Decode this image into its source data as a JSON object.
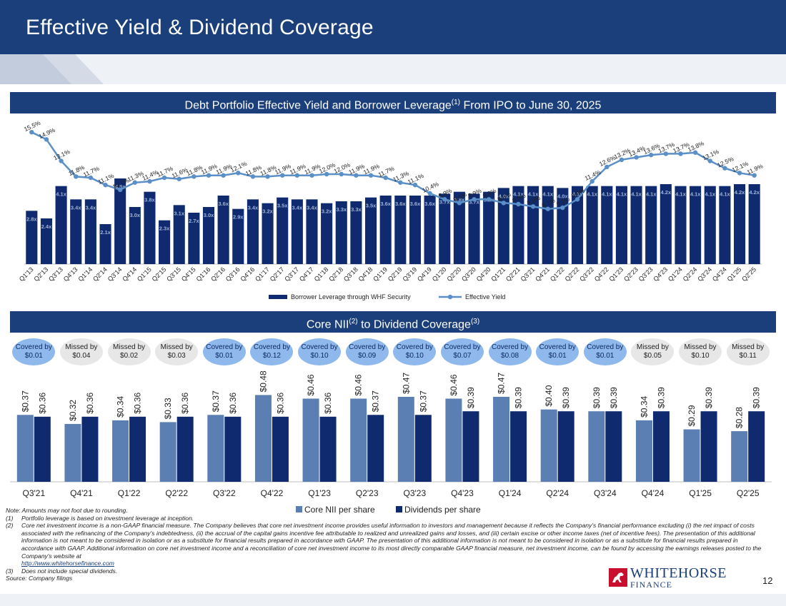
{
  "title": "Effective Yield & Dividend Coverage",
  "page_number": "12",
  "colors": {
    "navy": "#1b3f7a",
    "bar_dark": "#0f2a6e",
    "bar_light": "#5b7fb3",
    "yield_line": "#5b8fc7",
    "covered": "#8fb8ec",
    "missed": "#e7e7e7"
  },
  "banner1": {
    "main": "Debt Portfolio Effective Yield and Borrower Leverage",
    "sup": "(1)",
    "tail": " From IPO to June 30, 2025"
  },
  "banner2": {
    "main": "Core NII",
    "sup1": "(2)",
    "mid": " to Dividend Coverage",
    "sup2": "(3)"
  },
  "chart_data": [
    {
      "type": "bar+line",
      "title": "Debt Portfolio Effective Yield and Borrower Leverage(1) From IPO to June 30, 2025",
      "categories": [
        "Q1'13",
        "Q2'13",
        "Q3'13",
        "Q4'13",
        "Q1'14",
        "Q2'14",
        "Q3'14",
        "Q4'14",
        "Q1'15",
        "Q2'15",
        "Q3'15",
        "Q4'15",
        "Q1'16",
        "Q2'16",
        "Q3'16",
        "Q4'16",
        "Q1'17",
        "Q2'17",
        "Q3'17",
        "Q4'17",
        "Q1'18",
        "Q2'18",
        "Q3'18",
        "Q4'18",
        "Q1'19",
        "Q2'19",
        "Q3'19",
        "Q4'19",
        "Q1'20",
        "Q2'20",
        "Q3'20",
        "Q4'20",
        "Q1'21",
        "Q2'21",
        "Q3'21",
        "Q4'21",
        "Q1'22",
        "Q2'22",
        "Q3'22",
        "Q4'22",
        "Q1'23",
        "Q2'23",
        "Q3'23",
        "Q4'23",
        "Q1'24",
        "Q2'24",
        "Q3'24",
        "Q4'24",
        "Q1'25",
        "Q2'25"
      ],
      "series": [
        {
          "name": "Borrower Leverage through WHF Security",
          "kind": "bar",
          "values": [
            2.8,
            2.4,
            4.1,
            3.4,
            3.4,
            2.1,
            4.5,
            3.0,
            3.8,
            2.3,
            3.1,
            2.7,
            3.0,
            3.6,
            2.9,
            3.4,
            3.2,
            3.5,
            3.4,
            3.4,
            3.2,
            3.3,
            3.3,
            3.5,
            3.6,
            3.6,
            3.6,
            3.6,
            3.7,
            3.8,
            3.7,
            3.8,
            4.0,
            4.1,
            4.1,
            4.1,
            4.0,
            4.1,
            4.1,
            4.1,
            4.1,
            4.1,
            4.1,
            4.2,
            4.1,
            4.1,
            4.1,
            4.1,
            4.2,
            4.2
          ],
          "labels": [
            "2.8x",
            "2.4x",
            "4.1x",
            "3.4x",
            "3.4x",
            "2.1x",
            "4.5x",
            "3.0x",
            "3.8x",
            "2.3x",
            "3.1x",
            "2.7x",
            "3.0x",
            "3.6x",
            "2.9x",
            "3.4x",
            "3.2x",
            "3.5x",
            "3.4x",
            "3.4x",
            "3.2x",
            "3.3x",
            "3.3x",
            "3.5x",
            "3.6x",
            "3.6x",
            "3.6x",
            "3.6x",
            "3.7x",
            "3.8x",
            "3.7x",
            "3.8x",
            "4.0x",
            "4.1x",
            "4.1x",
            "4.1x",
            "4.0x",
            "4.1x",
            "4.1x",
            "4.1x",
            "4.1x",
            "4.1x",
            "4.1x",
            "4.2x",
            "4.1x",
            "4.1x",
            "4.1x",
            "4.1x",
            "4.2x",
            "4.2x"
          ]
        },
        {
          "name": "Effective Yield",
          "kind": "line",
          "values": [
            15.5,
            14.9,
            13.1,
            11.8,
            11.7,
            11.1,
            10.7,
            11.3,
            11.4,
            11.7,
            11.6,
            11.8,
            11.9,
            11.9,
            12.1,
            11.8,
            11.8,
            11.9,
            11.9,
            11.9,
            12.0,
            12.0,
            11.9,
            11.9,
            11.7,
            11.3,
            11.1,
            10.4,
            9.9,
            9.6,
            9.9,
            9.9,
            9.6,
            9.5,
            9.3,
            9.1,
            9.2,
            9.9,
            11.4,
            12.6,
            13.2,
            13.4,
            13.6,
            13.7,
            13.7,
            13.8,
            13.1,
            12.5,
            12.1,
            11.9
          ],
          "labels": [
            "15.5%",
            "14.9%",
            "13.1%",
            "11.8%",
            "11.7%",
            "11.1%",
            "10.7%",
            "11.3%",
            "11.4%",
            "11.7%",
            "11.6%",
            "11.8%",
            "11.9%",
            "11.9%",
            "12.1%",
            "11.8%",
            "11.8%",
            "11.9%",
            "11.9%",
            "11.9%",
            "12.0%",
            "12.0%",
            "11.9%",
            "11.9%",
            "11.7%",
            "11.3%",
            "11.1%",
            "10.4%",
            "9.9%",
            "9.6%",
            "9.9%",
            "9.9%",
            "9.6%",
            "9.5%",
            "9.3%",
            "9.1%",
            "9.2%",
            "9.9%",
            "11.4%",
            "12.6%",
            "13.2%",
            "13.4%",
            "13.6%",
            "13.7%",
            "13.7%",
            "13.8%",
            "13.1%",
            "12.5%",
            "12.1%",
            "11.9%"
          ]
        }
      ],
      "bar_ylim": [
        0,
        6.0
      ],
      "line_ylim": [
        4.5,
        17.0
      ],
      "legend": "bottom-center"
    },
    {
      "type": "bar",
      "title": "Core NII(2) to Dividend Coverage(3)",
      "categories": [
        "Q3'21",
        "Q4'21",
        "Q1'22",
        "Q2'22",
        "Q3'22",
        "Q4'22",
        "Q1'23",
        "Q2'23",
        "Q3'23",
        "Q4'23",
        "Q1'24",
        "Q2'24",
        "Q3'24",
        "Q4'24",
        "Q1'25",
        "Q2'25"
      ],
      "series": [
        {
          "name": "Core NII per share",
          "values": [
            0.37,
            0.32,
            0.34,
            0.33,
            0.37,
            0.48,
            0.46,
            0.46,
            0.47,
            0.46,
            0.47,
            0.4,
            0.39,
            0.34,
            0.29,
            0.28
          ],
          "labels": [
            "$0.37",
            "$0.32",
            "$0.34",
            "$0.33",
            "$0.37",
            "$0.48",
            "$0.46",
            "$0.46",
            "$0.47",
            "$0.46",
            "$0.47",
            "$0.40",
            "$0.39",
            "$0.34",
            "$0.29",
            "$0.28"
          ]
        },
        {
          "name": "Dividends per share",
          "values": [
            0.36,
            0.36,
            0.36,
            0.36,
            0.36,
            0.36,
            0.36,
            0.37,
            0.37,
            0.39,
            0.39,
            0.39,
            0.39,
            0.39,
            0.39,
            0.39
          ],
          "labels": [
            "$0.36",
            "$0.36",
            "$0.36",
            "$0.36",
            "$0.36",
            "$0.36",
            "$0.36",
            "$0.37",
            "$0.37",
            "$0.39",
            "$0.39",
            "$0.39",
            "$0.39",
            "$0.39",
            "$0.39",
            "$0.39"
          ]
        }
      ],
      "coverage": [
        {
          "status": "covered",
          "text": "Covered by $0.01"
        },
        {
          "status": "missed",
          "text": "Missed by $0.04"
        },
        {
          "status": "missed",
          "text": "Missed by $0.02"
        },
        {
          "status": "missed",
          "text": "Missed by $0.03"
        },
        {
          "status": "covered",
          "text": "Covered by $0.01"
        },
        {
          "status": "covered",
          "text": "Covered by $0.12"
        },
        {
          "status": "covered",
          "text": "Covered by $0.10"
        },
        {
          "status": "covered",
          "text": "Covered by $0.09"
        },
        {
          "status": "covered",
          "text": "Covered by $0.10"
        },
        {
          "status": "covered",
          "text": "Covered by $0.07"
        },
        {
          "status": "covered",
          "text": "Covered by $0.08"
        },
        {
          "status": "covered",
          "text": "Covered by $0.01"
        },
        {
          "status": "covered",
          "text": "Covered by $0.01"
        },
        {
          "status": "missed",
          "text": "Missed by $0.05"
        },
        {
          "status": "missed",
          "text": "Missed by $0.10"
        },
        {
          "status": "missed",
          "text": "Missed by $0.11"
        }
      ],
      "ylim": [
        0,
        0.75
      ],
      "legend": "bottom-right"
    }
  ],
  "footnotes": {
    "note": "Note: Amounts may not foot due to rounding.",
    "items": [
      {
        "num": "(1)",
        "text": "Portfolio leverage is based on investment leverage at inception."
      },
      {
        "num": "(2)",
        "text": "Core net investment income is a non-GAAP financial measure. The Company believes that core net investment income provides useful information to investors and management because it reflects the Company's financial performance excluding (i) the net impact of costs associated with the refinancing of the Company's indebtedness, (ii) the accrual of the capital gains incentive fee attributable to realized and unrealized gains and losses, and (iii) certain excise or other income taxes (net of incentive fees). The presentation of this additional information is not meant to be considered in isolation or as a substitute for financial results prepared in accordance with GAAP. The presentation of this additional information is not meant to be considered in isolation or as a substitute for financial results prepared in accordance with GAAP. Additional information on core net investment income and a reconciliation of core net investment income to its most directly comparable GAAP financial measure, net investment income, can be found by accessing the earnings releases posted to the Company's website at",
        "link": "http://www.whitehorsefinance.com"
      },
      {
        "num": "(3)",
        "text": "Does not include special dividends."
      }
    ],
    "source": "Source: Company filings"
  },
  "logo": {
    "line1": "WHITEHORSE",
    "line2": "FINANCE"
  }
}
